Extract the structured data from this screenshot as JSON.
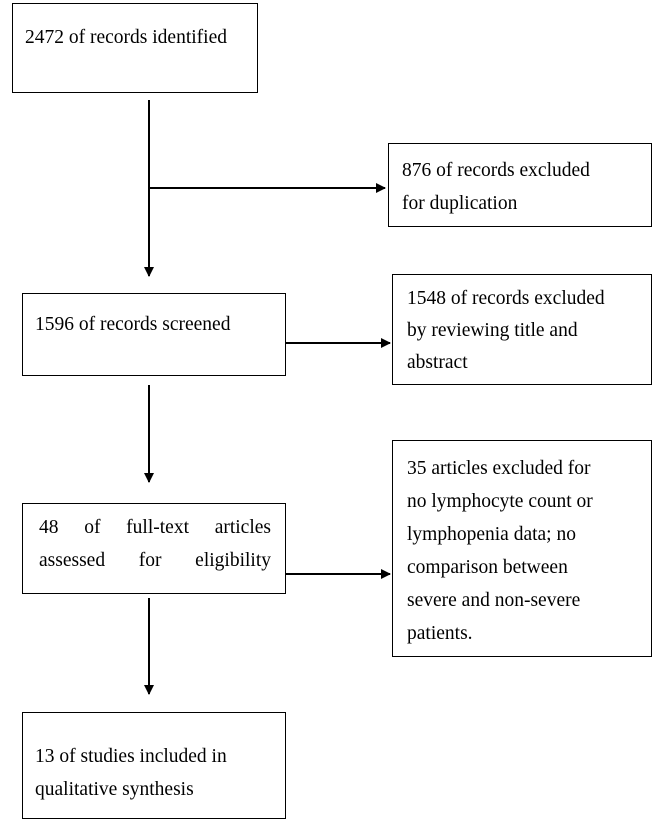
{
  "nodes": [
    {
      "lines": [
        "2472 of records identified"
      ]
    },
    {
      "lines": [
        "876 of records excluded",
        "for duplication"
      ]
    },
    {
      "lines": [
        "1596 of records screened"
      ]
    },
    {
      "lines": [
        "1548 of records excluded",
        "by reviewing title and",
        "abstract"
      ]
    },
    {
      "lines": [
        "48 of full-text articles",
        "assessed for eligibility"
      ]
    },
    {
      "lines": [
        "35 articles excluded for",
        "no lymphocyte count or",
        "lymphopenia data; no",
        "comparison between",
        "severe and non-severe",
        "patients."
      ]
    },
    {
      "lines": [
        "13 of studies included in",
        "qualitative synthesis"
      ]
    }
  ]
}
